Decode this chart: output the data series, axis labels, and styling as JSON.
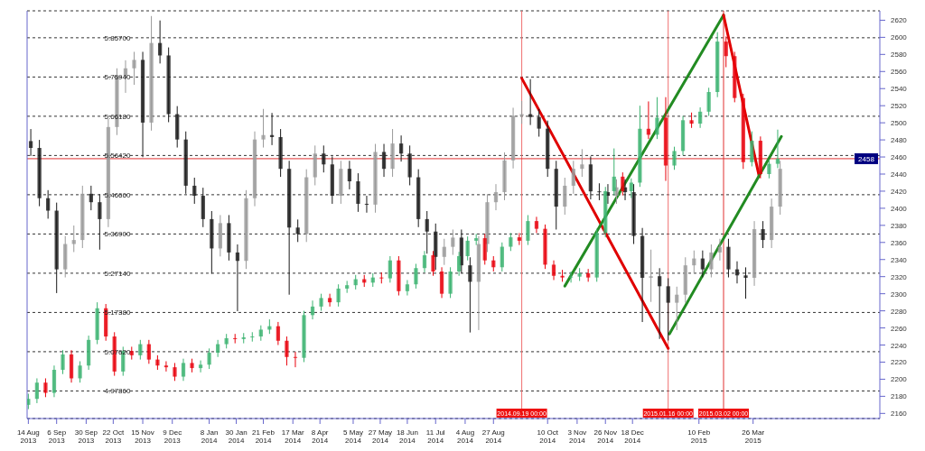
{
  "chart_data": {
    "type": "candlestick",
    "x": [
      "2013-08-14",
      "2013-08-21",
      "2013-08-28",
      "2013-09-04",
      "2013-09-11",
      "2013-09-18",
      "2013-09-25",
      "2013-10-02",
      "2013-10-09",
      "2013-10-16",
      "2013-10-23",
      "2013-10-30",
      "2013-11-06",
      "2013-11-13",
      "2013-11-20",
      "2013-11-27",
      "2013-12-04",
      "2013-12-11",
      "2013-12-18",
      "2013-12-25",
      "2014-01-01",
      "2014-01-08",
      "2014-01-15",
      "2014-01-22",
      "2014-01-29",
      "2014-02-05",
      "2014-02-12",
      "2014-02-19",
      "2014-02-26",
      "2014-03-05",
      "2014-03-12",
      "2014-03-19",
      "2014-03-26",
      "2014-04-02",
      "2014-04-09",
      "2014-04-16",
      "2014-04-23",
      "2014-04-30",
      "2014-05-07",
      "2014-05-14",
      "2014-05-21",
      "2014-05-28",
      "2014-06-04",
      "2014-06-11",
      "2014-06-18",
      "2014-06-25",
      "2014-07-02",
      "2014-07-09",
      "2014-07-16",
      "2014-07-23",
      "2014-07-30",
      "2014-08-06",
      "2014-08-13",
      "2014-08-20",
      "2014-08-27",
      "2014-09-03",
      "2014-09-10",
      "2014-09-17",
      "2014-09-24",
      "2014-10-01",
      "2014-10-08",
      "2014-10-15",
      "2014-10-22",
      "2014-10-29",
      "2014-11-05",
      "2014-11-12",
      "2014-11-19",
      "2014-11-26",
      "2014-12-03",
      "2014-12-10",
      "2014-12-17",
      "2014-12-24",
      "2014-12-31",
      "2015-01-07",
      "2015-01-14",
      "2015-01-21",
      "2015-01-28",
      "2015-02-04",
      "2015-02-11",
      "2015-02-18",
      "2015-02-25",
      "2015-03-04",
      "2015-03-11",
      "2015-03-18",
      "2015-03-25",
      "2015-04-01",
      "2015-04-08",
      "2015-04-15"
    ],
    "series": [
      {
        "axis": "y",
        "x": [
          "2013-08-16",
          "2013-08-23",
          "2013-08-30",
          "2013-09-06",
          "2013-09-13",
          "2013-09-20",
          "2013-09-27",
          "2013-10-04",
          "2013-10-11",
          "2013-10-18",
          "2013-10-25",
          "2013-11-01",
          "2013-11-08",
          "2013-11-15",
          "2013-11-22",
          "2013-11-29",
          "2013-12-06",
          "2013-12-13",
          "2013-12-20",
          "2013-12-27",
          "2014-01-03",
          "2014-01-10",
          "2014-01-17",
          "2014-01-24",
          "2014-01-31",
          "2014-02-07",
          "2014-02-14",
          "2014-02-21",
          "2014-02-28",
          "2014-03-07",
          "2014-03-14",
          "2014-03-21",
          "2014-03-28",
          "2014-04-04",
          "2014-04-11",
          "2014-04-18",
          "2014-04-25",
          "2014-05-02",
          "2014-05-09",
          "2014-05-16",
          "2014-05-23",
          "2014-05-30",
          "2014-06-06",
          "2014-06-13",
          "2014-06-20",
          "2014-06-27",
          "2014-07-04",
          "2014-07-11",
          "2014-07-18",
          "2014-07-25",
          "2014-08-01",
          "2014-08-08",
          "2014-08-15",
          "2014-08-22",
          "2014-08-29",
          "2014-09-05",
          "2014-09-12",
          "2014-09-19",
          "2014-09-26",
          "2014-10-03",
          "2014-10-10",
          "2014-10-17",
          "2014-10-24",
          "2014-10-31",
          "2014-11-07",
          "2014-11-14",
          "2014-11-21",
          "2014-11-28",
          "2014-12-05",
          "2014-12-12",
          "2014-12-19",
          "2014-12-26",
          "2015-01-02",
          "2015-01-09",
          "2015-01-16",
          "2015-01-23",
          "2015-01-30",
          "2015-02-06",
          "2015-02-13",
          "2015-02-20",
          "2015-02-27",
          "2015-03-06",
          "2015-03-13",
          "2015-03-20",
          "2015-03-27",
          "2015-04-03",
          "2015-04-10",
          "2015-04-17"
        ],
        "colors": [
          "#1a1a1a",
          "#1a1a1a",
          "#1a1a1a",
          "#1a1a1a",
          "#9a9a9a",
          "#9a9a9a",
          "#9a9a9a",
          "#1a1a1a",
          "#1a1a1a",
          "#9a9a9a",
          "#9a9a9a",
          "#9a9a9a",
          "#9a9a9a",
          "#1a1a1a",
          "#9a9a9a",
          "#1a1a1a",
          "#1a1a1a",
          "#1a1a1a",
          "#1a1a1a",
          "#1a1a1a",
          "#1a1a1a",
          "#1a1a1a",
          "#9a9a9a",
          "#1a1a1a",
          "#1a1a1a",
          "#9a9a9a",
          "#9a9a9a",
          "#9a9a9a",
          "#1a1a1a",
          "#1a1a1a",
          "#1a1a1a",
          "#1a1a1a",
          "#9a9a9a",
          "#9a9a9a",
          "#1a1a1a",
          "#1a1a1a",
          "#9a9a9a",
          "#1a1a1a",
          "#1a1a1a",
          "#1a1a1a",
          "#9a9a9a",
          "#1a1a1a",
          "#9a9a9a",
          "#1a1a1a",
          "#1a1a1a",
          "#1a1a1a",
          "#1a1a1a",
          "#1a1a1a",
          "#9a9a9a",
          "#9a9a9a",
          "#1a1a1a",
          "#1a1a1a",
          "#9a9a9a",
          "#9a9a9a",
          "#9a9a9a",
          "#9a9a9a",
          "#9a9a9a",
          "#9a9a9a",
          "#1a1a1a",
          "#1a1a1a",
          "#1a1a1a",
          "#1a1a1a",
          "#9a9a9a",
          "#9a9a9a",
          "#9a9a9a",
          "#1a1a1a",
          "#1a1a1a",
          "#1a1a1a",
          "#9a9a9a",
          "#1a1a1a",
          "#1a1a1a",
          "#1a1a1a",
          "#9a9a9a",
          "#1a1a1a",
          "#1a1a1a",
          "#9a9a9a",
          "#9a9a9a",
          "#9a9a9a",
          "#1a1a1a",
          "#9a9a9a",
          "#9a9a9a",
          "#1a1a1a",
          "#1a1a1a",
          "#1a1a1a",
          "#9a9a9a",
          "#1a1a1a",
          "#9a9a9a",
          "#9a9a9a"
        ],
        "ohlc": [
          [
            5.6,
            5.63,
            5.563,
            5.583
          ],
          [
            5.583,
            5.603,
            5.438,
            5.458
          ],
          [
            5.458,
            5.478,
            5.407,
            5.427
          ],
          [
            5.427,
            5.447,
            5.222,
            5.281
          ],
          [
            5.281,
            5.364,
            5.261,
            5.344
          ],
          [
            5.344,
            5.39,
            5.324,
            5.354
          ],
          [
            5.354,
            5.489,
            5.334,
            5.469
          ],
          [
            5.469,
            5.489,
            5.428,
            5.448
          ],
          [
            5.448,
            5.468,
            5.33,
            5.406
          ],
          [
            5.406,
            5.655,
            5.386,
            5.635
          ],
          [
            5.635,
            5.781,
            5.615,
            5.761
          ],
          [
            5.761,
            5.801,
            5.72,
            5.781
          ],
          [
            5.781,
            5.822,
            5.74,
            5.802
          ],
          [
            5.802,
            5.822,
            5.56,
            5.646
          ],
          [
            5.646,
            5.911,
            5.626,
            5.844
          ],
          [
            5.844,
            5.9,
            5.793,
            5.813
          ],
          [
            5.813,
            5.833,
            5.647,
            5.667
          ],
          [
            5.667,
            5.687,
            5.584,
            5.604
          ],
          [
            5.604,
            5.624,
            5.469,
            5.489
          ],
          [
            5.489,
            5.509,
            5.444,
            5.464
          ],
          [
            5.464,
            5.484,
            5.386,
            5.406
          ],
          [
            5.406,
            5.426,
            5.27,
            5.333
          ],
          [
            5.333,
            5.416,
            5.313,
            5.396
          ],
          [
            5.396,
            5.416,
            5.303,
            5.323
          ],
          [
            5.323,
            5.343,
            5.177,
            5.302
          ],
          [
            5.302,
            5.478,
            5.282,
            5.458
          ],
          [
            5.458,
            5.624,
            5.438,
            5.604
          ],
          [
            5.604,
            5.68,
            5.584,
            5.615
          ],
          [
            5.615,
            5.67,
            5.59,
            5.61
          ],
          [
            5.61,
            5.63,
            5.511,
            5.531
          ],
          [
            5.531,
            5.551,
            5.218,
            5.385
          ],
          [
            5.385,
            5.405,
            5.349,
            5.369
          ],
          [
            5.369,
            5.53,
            5.349,
            5.51
          ],
          [
            5.51,
            5.589,
            5.49,
            5.569
          ],
          [
            5.569,
            5.589,
            5.522,
            5.542
          ],
          [
            5.542,
            5.562,
            5.444,
            5.464
          ],
          [
            5.464,
            5.551,
            5.444,
            5.531
          ],
          [
            5.531,
            5.551,
            5.48,
            5.5
          ],
          [
            5.5,
            5.52,
            5.424,
            5.444
          ],
          [
            5.444,
            5.464,
            5.422,
            5.442
          ],
          [
            5.442,
            5.593,
            5.422,
            5.573
          ],
          [
            5.573,
            5.593,
            5.511,
            5.531
          ],
          [
            5.531,
            5.63,
            5.511,
            5.594
          ],
          [
            5.594,
            5.614,
            5.549,
            5.569
          ],
          [
            5.569,
            5.589,
            5.49,
            5.51
          ],
          [
            5.51,
            5.53,
            5.386,
            5.406
          ],
          [
            5.406,
            5.426,
            5.32,
            5.375
          ],
          [
            5.375,
            5.395,
            5.28,
            5.312
          ],
          [
            5.312,
            5.357,
            5.292,
            5.337
          ],
          [
            5.337,
            5.38,
            5.317,
            5.36
          ],
          [
            5.36,
            5.38,
            5.271,
            5.291
          ],
          [
            5.291,
            5.311,
            5.124,
            5.25
          ],
          [
            5.25,
            5.364,
            5.13,
            5.344
          ],
          [
            5.344,
            5.468,
            5.324,
            5.448
          ],
          [
            5.448,
            5.493,
            5.428,
            5.473
          ],
          [
            5.473,
            5.572,
            5.453,
            5.552
          ],
          [
            5.552,
            5.683,
            5.532,
            5.663
          ],
          [
            5.663,
            5.7,
            5.643,
            5.667
          ],
          [
            5.667,
            5.754,
            5.64,
            5.66
          ],
          [
            5.66,
            5.68,
            5.611,
            5.631
          ],
          [
            5.631,
            5.651,
            5.511,
            5.531
          ],
          [
            5.531,
            5.551,
            5.38,
            5.437
          ],
          [
            5.437,
            5.509,
            5.417,
            5.489
          ],
          [
            5.489,
            5.551,
            5.469,
            5.531
          ],
          [
            5.531,
            5.58,
            5.511,
            5.542
          ],
          [
            5.542,
            5.562,
            5.455,
            5.475
          ],
          [
            5.475,
            5.495,
            5.453,
            5.473
          ],
          [
            5.473,
            5.493,
            5.444,
            5.464
          ],
          [
            5.464,
            5.505,
            5.444,
            5.485
          ],
          [
            5.485,
            5.505,
            5.453,
            5.473
          ],
          [
            5.473,
            5.493,
            5.344,
            5.364
          ],
          [
            5.364,
            5.384,
            5.15,
            5.26
          ],
          [
            5.26,
            5.33,
            5.2,
            5.264
          ],
          [
            5.264,
            5.284,
            5.108,
            5.239
          ],
          [
            5.239,
            5.259,
            5.104,
            5.198
          ],
          [
            5.198,
            5.238,
            5.13,
            5.218
          ],
          [
            5.218,
            5.311,
            5.198,
            5.291
          ],
          [
            5.291,
            5.328,
            5.271,
            5.308
          ],
          [
            5.308,
            5.328,
            5.261,
            5.281
          ],
          [
            5.281,
            5.343,
            5.261,
            5.323
          ],
          [
            5.323,
            5.357,
            5.303,
            5.337
          ],
          [
            5.337,
            5.357,
            5.261,
            5.281
          ],
          [
            5.281,
            5.301,
            5.246,
            5.266
          ],
          [
            5.266,
            5.286,
            5.208,
            5.26
          ],
          [
            5.26,
            5.401,
            5.24,
            5.381
          ],
          [
            5.381,
            5.401,
            5.334,
            5.354
          ],
          [
            5.354,
            5.457,
            5.334,
            5.437
          ],
          [
            5.437,
            5.551,
            5.417,
            5.531
          ]
        ]
      },
      {
        "axis": "y2",
        "colors": [
          "#3cb371",
          "#3cb371",
          "#e8000b",
          "#3cb371",
          "#3cb371",
          "#e8000b",
          "#3cb371",
          "#3cb371",
          "#3cb371",
          "#e8000b",
          "#e8000b",
          "#3cb371",
          "#e8000b",
          "#3cb371",
          "#e8000b",
          "#e8000b",
          "#e8000b",
          "#e8000b",
          "#3cb371",
          "#e8000b",
          "#3cb371",
          "#3cb371",
          "#3cb371",
          "#3cb371",
          "#e8000b",
          "#3cb371",
          "#3cb371",
          "#3cb371",
          "#3cb371",
          "#e8000b",
          "#e8000b",
          "#e8000b",
          "#3cb371",
          "#3cb371",
          "#3cb371",
          "#e8000b",
          "#3cb371",
          "#3cb371",
          "#3cb371",
          "#e8000b",
          "#3cb371",
          "#e8000b",
          "#3cb371",
          "#e8000b",
          "#3cb371",
          "#3cb371",
          "#3cb371",
          "#e8000b",
          "#e8000b",
          "#3cb371",
          "#3cb371",
          "#3cb371",
          "#3cb371",
          "#e8000b",
          "#e8000b",
          "#3cb371",
          "#3cb371",
          "#e8000b",
          "#3cb371",
          "#e8000b",
          "#e8000b",
          "#e8000b",
          "#e8000b",
          "#3cb371",
          "#3cb371",
          "#e8000b",
          "#3cb371",
          "#3cb371",
          "#3cb371",
          "#e8000b",
          "#3cb371",
          "#3cb371",
          "#e8000b",
          "#3cb371",
          "#e8000b",
          "#3cb371",
          "#3cb371",
          "#e8000b",
          "#3cb371",
          "#3cb371",
          "#3cb371",
          "#e8000b",
          "#e8000b",
          "#e8000b",
          "#3cb371",
          "#e8000b",
          "#3cb371",
          "#3cb371"
        ],
        "ohlc": [
          [
            2170,
            2183,
            2165,
            2177
          ],
          [
            2177,
            2201,
            2172,
            2196
          ],
          [
            2196,
            2201,
            2179,
            2184
          ],
          [
            2184,
            2216,
            2179,
            2211
          ],
          [
            2211,
            2234,
            2206,
            2229
          ],
          [
            2229,
            2234,
            2196,
            2201
          ],
          [
            2201,
            2221,
            2196,
            2216
          ],
          [
            2216,
            2251,
            2211,
            2246
          ],
          [
            2246,
            2290,
            2241,
            2283
          ],
          [
            2283,
            2288,
            2245,
            2250
          ],
          [
            2250,
            2255,
            2204,
            2209
          ],
          [
            2209,
            2238,
            2204,
            2233
          ],
          [
            2233,
            2238,
            2223,
            2228
          ],
          [
            2228,
            2246,
            2223,
            2241
          ],
          [
            2241,
            2246,
            2218,
            2223
          ],
          [
            2223,
            2228,
            2211,
            2216
          ],
          [
            2216,
            2221,
            2209,
            2214
          ],
          [
            2214,
            2219,
            2198,
            2203
          ],
          [
            2203,
            2224,
            2198,
            2219
          ],
          [
            2219,
            2224,
            2208,
            2213
          ],
          [
            2213,
            2222,
            2208,
            2217
          ],
          [
            2217,
            2236,
            2212,
            2231
          ],
          [
            2231,
            2246,
            2226,
            2241
          ],
          [
            2241,
            2253,
            2236,
            2248
          ],
          [
            2248,
            2253,
            2242,
            2247
          ],
          [
            2247,
            2254,
            2242,
            2249
          ],
          [
            2249,
            2255,
            2244,
            2250
          ],
          [
            2250,
            2263,
            2245,
            2258
          ],
          [
            2258,
            2270,
            2253,
            2262
          ],
          [
            2262,
            2267,
            2240,
            2245
          ],
          [
            2245,
            2250,
            2216,
            2226
          ],
          [
            2226,
            2232,
            2214,
            2225
          ],
          [
            2225,
            2280,
            2220,
            2275
          ],
          [
            2275,
            2292,
            2270,
            2285
          ],
          [
            2285,
            2300,
            2280,
            2295
          ],
          [
            2295,
            2300,
            2285,
            2290
          ],
          [
            2290,
            2311,
            2285,
            2306
          ],
          [
            2306,
            2315,
            2301,
            2310
          ],
          [
            2310,
            2322,
            2305,
            2317
          ],
          [
            2317,
            2322,
            2308,
            2313
          ],
          [
            2313,
            2324,
            2308,
            2319
          ],
          [
            2319,
            2325,
            2312,
            2318
          ],
          [
            2318,
            2344,
            2313,
            2339
          ],
          [
            2339,
            2344,
            2298,
            2303
          ],
          [
            2303,
            2316,
            2298,
            2311
          ],
          [
            2311,
            2335,
            2306,
            2330
          ],
          [
            2330,
            2350,
            2325,
            2345
          ],
          [
            2345,
            2350,
            2321,
            2326
          ],
          [
            2326,
            2331,
            2295,
            2300
          ],
          [
            2300,
            2331,
            2295,
            2326
          ],
          [
            2326,
            2349,
            2321,
            2344
          ],
          [
            2344,
            2367,
            2339,
            2362
          ],
          [
            2362,
            2370,
            2357,
            2365
          ],
          [
            2365,
            2370,
            2334,
            2339
          ],
          [
            2339,
            2344,
            2326,
            2331
          ],
          [
            2331,
            2360,
            2326,
            2355
          ],
          [
            2355,
            2371,
            2350,
            2366
          ],
          [
            2366,
            2371,
            2357,
            2362
          ],
          [
            2362,
            2392,
            2357,
            2385
          ],
          [
            2385,
            2390,
            2371,
            2376
          ],
          [
            2376,
            2381,
            2329,
            2334
          ],
          [
            2334,
            2339,
            2316,
            2321
          ],
          [
            2321,
            2328,
            2314,
            2319
          ],
          [
            2319,
            2326,
            2313,
            2320
          ],
          [
            2320,
            2330,
            2315,
            2324
          ],
          [
            2324,
            2329,
            2314,
            2319
          ],
          [
            2319,
            2376,
            2314,
            2371
          ],
          [
            2371,
            2425,
            2366,
            2420
          ],
          [
            2420,
            2470,
            2415,
            2437
          ],
          [
            2437,
            2442,
            2415,
            2420
          ],
          [
            2420,
            2435,
            2412,
            2430
          ],
          [
            2430,
            2520,
            2425,
            2493
          ],
          [
            2493,
            2525,
            2481,
            2486
          ],
          [
            2486,
            2530,
            2481,
            2506
          ],
          [
            2506,
            2530,
            2432,
            2450
          ],
          [
            2450,
            2472,
            2445,
            2467
          ],
          [
            2467,
            2508,
            2462,
            2503
          ],
          [
            2503,
            2512,
            2494,
            2499
          ],
          [
            2499,
            2518,
            2494,
            2513
          ],
          [
            2513,
            2541,
            2508,
            2536
          ],
          [
            2536,
            2606,
            2530,
            2595
          ],
          [
            2595,
            2601,
            2565,
            2578
          ],
          [
            2578,
            2583,
            2524,
            2529
          ],
          [
            2529,
            2534,
            2446,
            2454
          ],
          [
            2454,
            2490,
            2449,
            2479
          ],
          [
            2479,
            2484,
            2435,
            2440
          ],
          [
            2440,
            2457,
            2435,
            2452
          ],
          [
            2452,
            2492,
            2447,
            2458
          ]
        ]
      },
      {
        "type": "line",
        "axis": "y2",
        "color": "#e00000",
        "x": [
          "2014-09-19",
          "2015-01-16"
        ],
        "values": [
          2552,
          2236
        ]
      },
      {
        "type": "line",
        "axis": "y2",
        "color": "#228b22",
        "x": [
          "2014-10-24",
          "2015-03-02"
        ],
        "values": [
          2309,
          2626
        ]
      },
      {
        "type": "line",
        "axis": "y2",
        "color": "#e00000",
        "x": [
          "2015-03-02",
          "2015-03-31"
        ],
        "values": [
          2626,
          2437
        ]
      },
      {
        "type": "line",
        "axis": "y2",
        "color": "#228b22",
        "x": [
          "2015-01-17",
          "2015-04-18"
        ],
        "values": [
          2253,
          2484
        ]
      }
    ],
    "xlim": [
      "2013-08-13",
      "2015-07-07"
    ],
    "xticks": [
      {
        "value": "2013-08-14",
        "label": "14 Aug 2013"
      },
      {
        "value": "2013-09-06",
        "label": "6 Sep 2013"
      },
      {
        "value": "2013-09-30",
        "label": "30 Sep 2013"
      },
      {
        "value": "2013-10-22",
        "label": "22 Oct 2013"
      },
      {
        "value": "2013-11-15",
        "label": "15 Nov 2013"
      },
      {
        "value": "2013-12-09",
        "label": "9 Dec 2013"
      },
      {
        "value": "2014-01-08",
        "label": "8 Jan 2014"
      },
      {
        "value": "2014-01-30",
        "label": "30 Jan 2014"
      },
      {
        "value": "2014-02-21",
        "label": "21 Feb 2014"
      },
      {
        "value": "2014-03-17",
        "label": "17 Mar 2014"
      },
      {
        "value": "2014-04-08",
        "label": "8 Apr 2014"
      },
      {
        "value": "2014-05-05",
        "label": "5 May 2014"
      },
      {
        "value": "2014-05-27",
        "label": "27 May 2014"
      },
      {
        "value": "2014-06-18",
        "label": "18 Jun 2014"
      },
      {
        "value": "2014-07-11",
        "label": "11 Jul 2014"
      },
      {
        "value": "2014-08-04",
        "label": "4 Aug 2014"
      },
      {
        "value": "2014-08-27",
        "label": "27 Aug 2014"
      },
      {
        "value": "2014-10-10",
        "label": "10 Oct 2014"
      },
      {
        "value": "2014-11-03",
        "label": "3 Nov 2014"
      },
      {
        "value": "2014-11-26",
        "label": "26 Nov 2014"
      },
      {
        "value": "2014-12-18",
        "label": "18 Dec 2014"
      },
      {
        "value": "2015-02-10",
        "label": "10 Feb 2015"
      },
      {
        "value": "2015-03-26",
        "label": "26 Mar 2015"
      }
    ],
    "ylim": [
      4.91,
      5.924
    ],
    "yticks": [
      {
        "value": 4.9786,
        "label": "4.97860"
      },
      {
        "value": 5.0762,
        "label": "5.07620"
      },
      {
        "value": 5.1738,
        "label": "5.17380"
      },
      {
        "value": 5.2714,
        "label": "5.27140"
      },
      {
        "value": 5.369,
        "label": "5.36900"
      },
      {
        "value": 5.4666,
        "label": "5.46660"
      },
      {
        "value": 5.5642,
        "label": "5.56420"
      },
      {
        "value": 5.6618,
        "label": "5.66180"
      },
      {
        "value": 5.7594,
        "label": "5.75940"
      },
      {
        "value": 5.857,
        "label": "5.85700"
      }
    ],
    "y2lim": [
      2154,
      2631
    ],
    "y2ticks": [
      2160,
      2180,
      2200,
      2220,
      2240,
      2260,
      2280,
      2300,
      2320,
      2340,
      2360,
      2380,
      2400,
      2420,
      2440,
      2460,
      2480,
      2500,
      2520,
      2540,
      2560,
      2580,
      2600,
      2620
    ],
    "grid": "y",
    "ref_lines": [
      {
        "axis": "x",
        "value": "2014-09-19",
        "label": "2014.09.19 00:00",
        "color": "#f07070"
      },
      {
        "axis": "x",
        "value": "2015-01-16",
        "label": "2015.01.16 00:00",
        "color": "#f07070"
      },
      {
        "axis": "x",
        "value": "2015-03-02",
        "label": "2015.03.02 00:00",
        "color": "#e03030"
      },
      {
        "axis": "y2",
        "value": 2458,
        "label": "2458",
        "color": "#e03030"
      }
    ]
  }
}
